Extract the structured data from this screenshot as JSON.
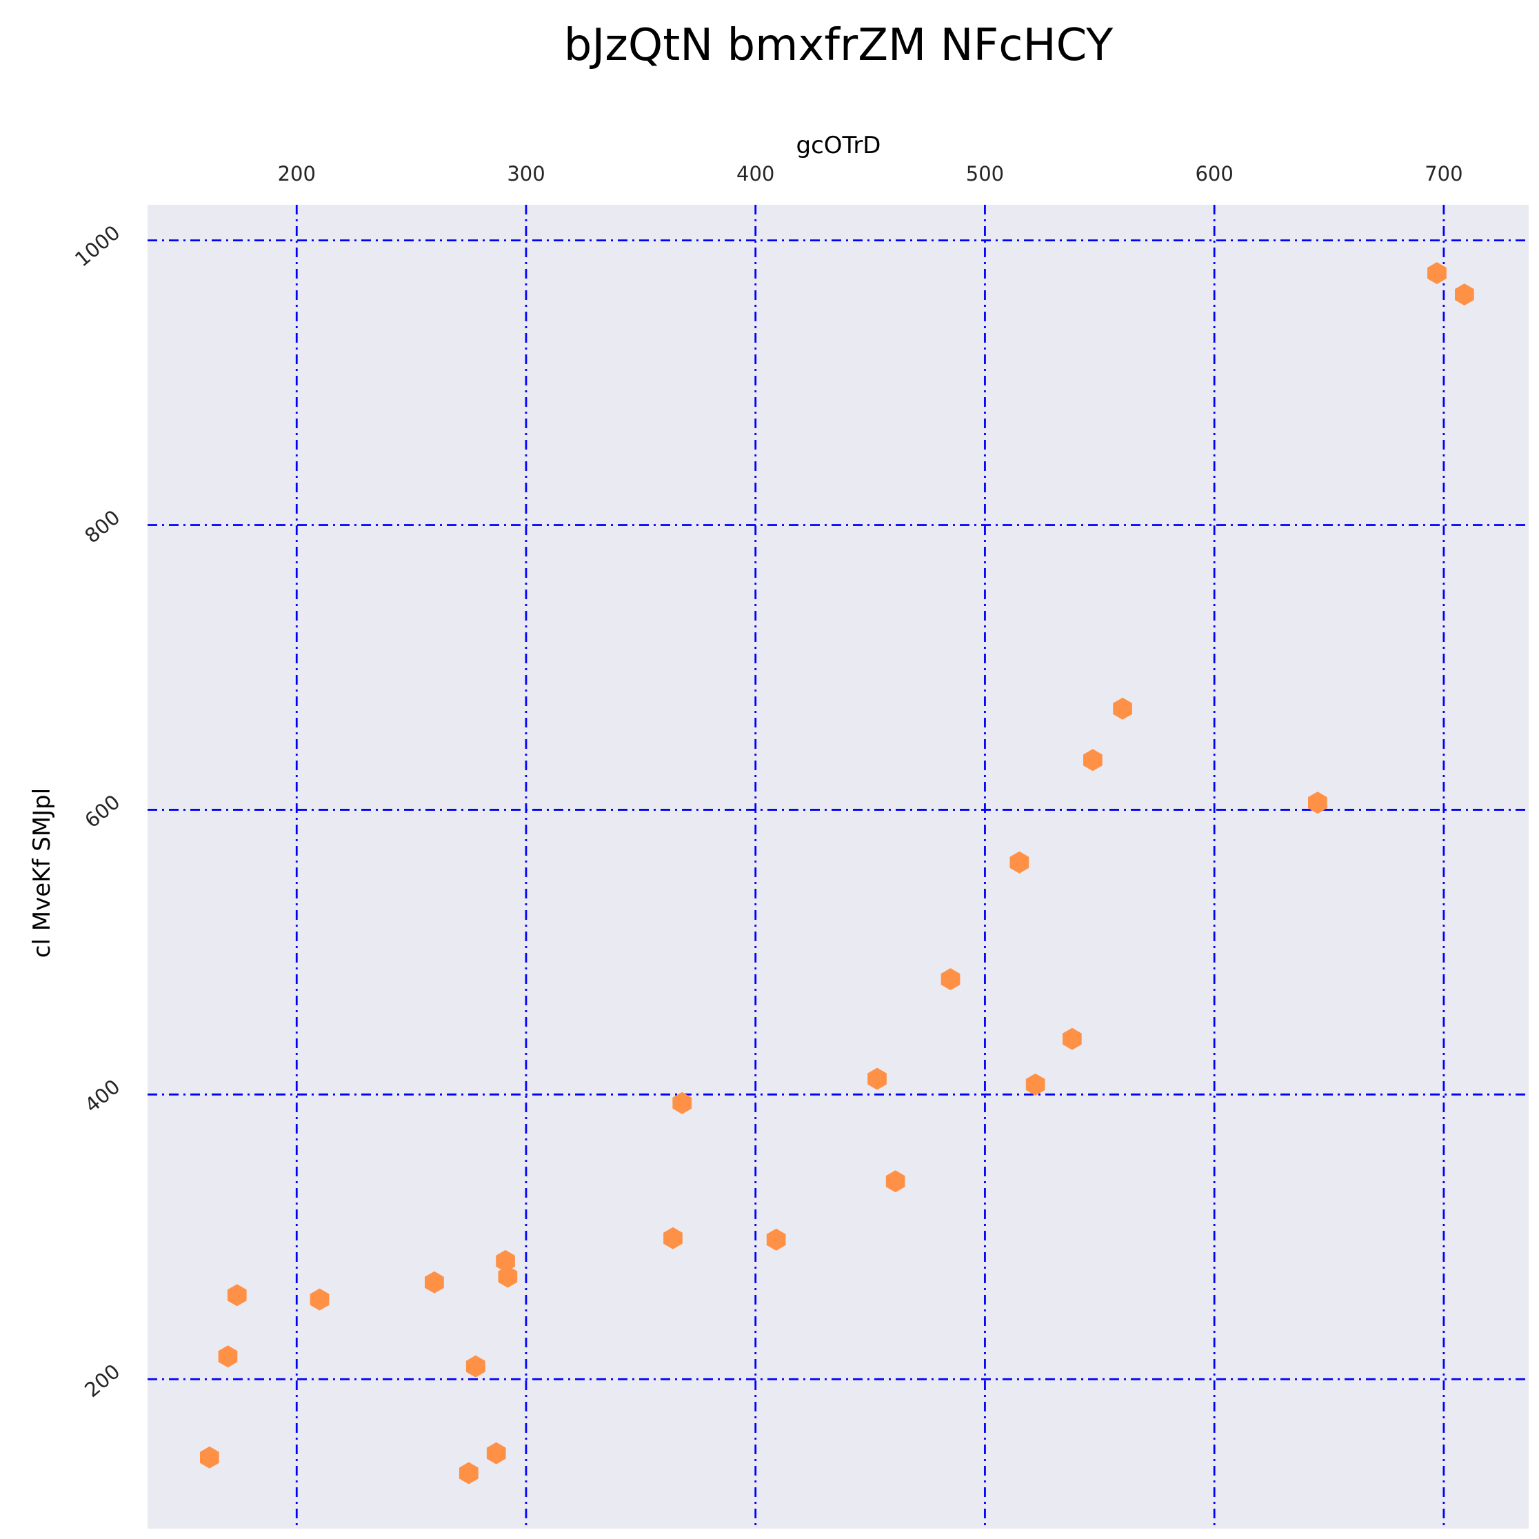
{
  "chart_data": {
    "type": "scatter",
    "title": "bJzQtN bmxfrZM NFcHCY",
    "xlabel": "gcOTrD",
    "ylabel": "cl MveKf SMJpl",
    "xlim": [
      135,
      737
    ],
    "ylim": [
      95,
      1025
    ],
    "xticks": [
      200,
      300,
      400,
      500,
      600,
      700
    ],
    "yticks": [
      200,
      400,
      600,
      800,
      1000
    ],
    "x_axis_position": "top",
    "grid": true,
    "grid_style": "dash-dot",
    "colors": {
      "plot_background": "#eaeaf2",
      "grid": "#0000ff",
      "marker": "#ff9147"
    },
    "marker": "hexagon",
    "series": [
      {
        "points": [
          [
            162,
            145
          ],
          [
            170,
            216
          ],
          [
            174,
            259
          ],
          [
            210,
            256
          ],
          [
            260,
            268
          ],
          [
            275,
            134
          ],
          [
            278,
            209
          ],
          [
            287,
            148
          ],
          [
            291,
            283
          ],
          [
            292,
            272
          ],
          [
            364,
            299
          ],
          [
            368,
            394
          ],
          [
            409,
            298
          ],
          [
            453,
            411
          ],
          [
            461,
            339
          ],
          [
            485,
            481
          ],
          [
            515,
            563
          ],
          [
            522,
            407
          ],
          [
            538,
            439
          ],
          [
            547,
            635
          ],
          [
            560,
            671
          ],
          [
            645,
            605
          ],
          [
            697,
            977
          ],
          [
            709,
            962
          ]
        ]
      }
    ]
  }
}
